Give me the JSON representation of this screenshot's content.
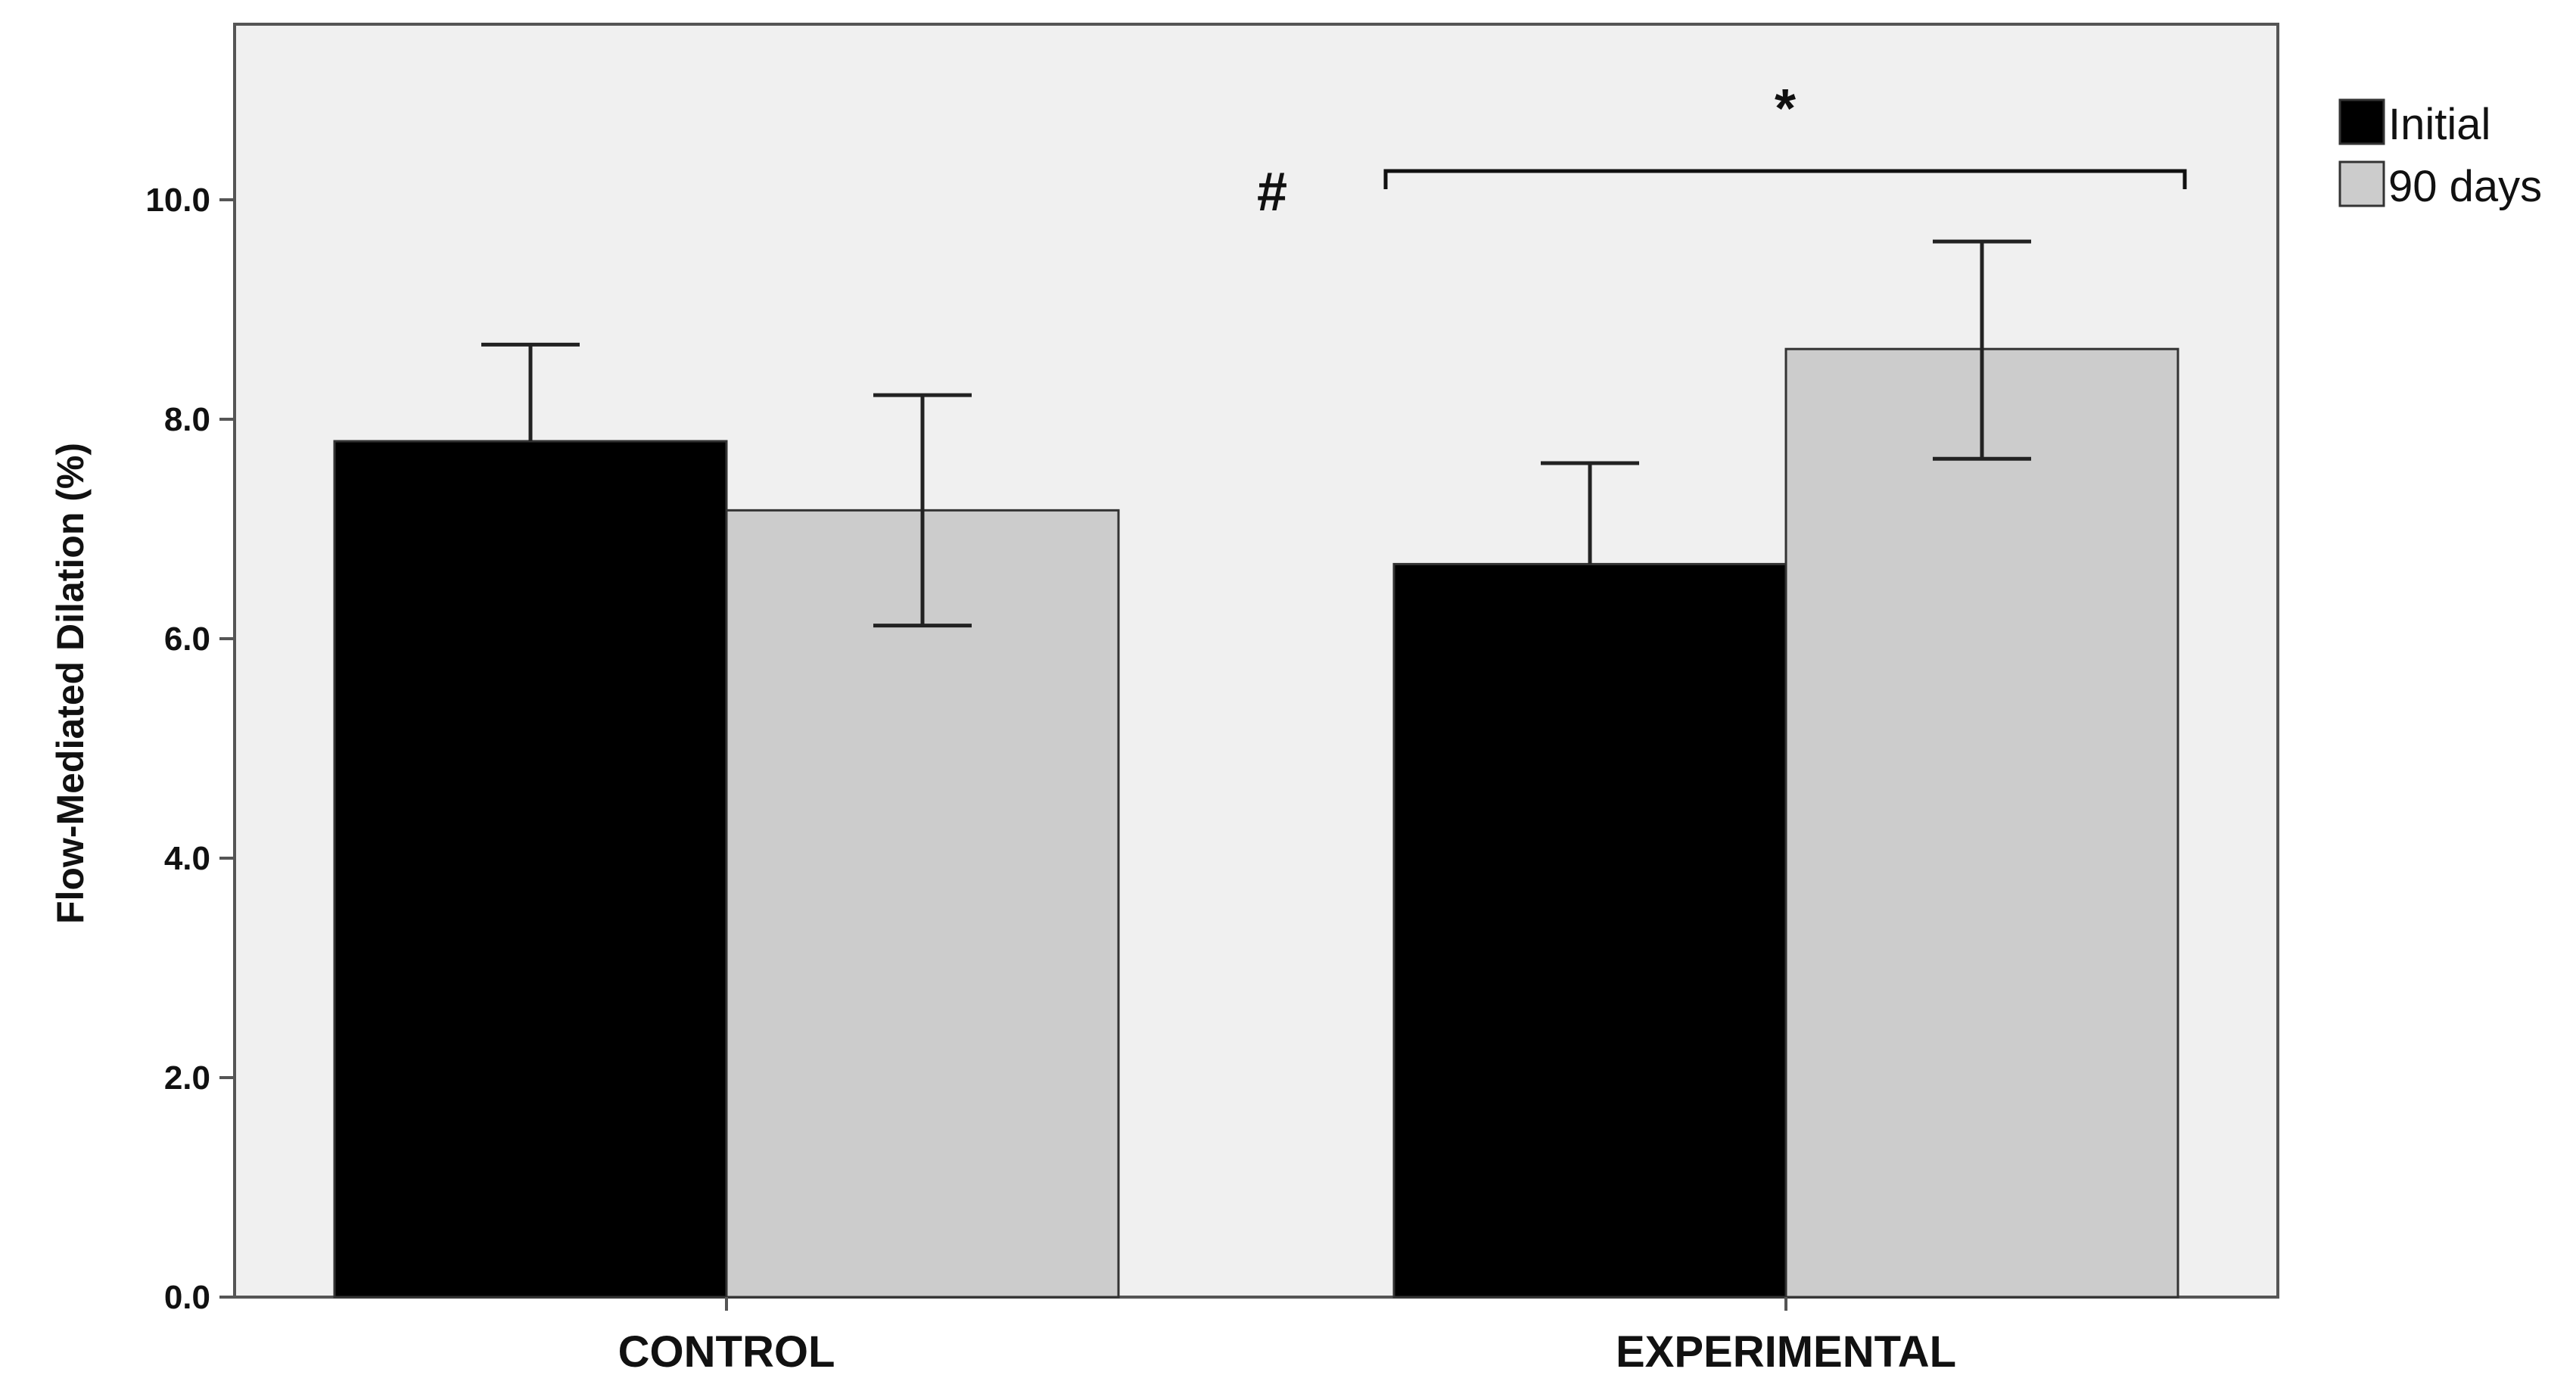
{
  "chart_data": {
    "type": "bar",
    "title": "",
    "xlabel": "",
    "ylabel": "Flow-Mediated Dilation (%)",
    "ylim": [
      0,
      11.6
    ],
    "yticks": [
      0,
      2,
      4,
      6,
      8,
      10
    ],
    "ytick_labels": [
      "0.0",
      "2.0",
      "4.0",
      "6.0",
      "8.0",
      "10.0"
    ],
    "categories": [
      "CONTROL",
      "EXPERIMENTAL"
    ],
    "series": [
      {
        "name": "Initial",
        "color": "#000000",
        "values": [
          7.8,
          6.68
        ],
        "error_high": [
          8.68,
          7.6
        ],
        "error_low": [
          7.8,
          6.68
        ]
      },
      {
        "name": "90 days",
        "color": "#cccccc",
        "values": [
          7.17,
          8.64
        ],
        "error_high": [
          8.22,
          9.62
        ],
        "error_low": [
          6.12,
          7.64
        ]
      }
    ],
    "legend": {
      "position": "right",
      "entries": [
        "Initial",
        "90 days"
      ]
    },
    "annotations": [
      {
        "id": "hash",
        "text": "#",
        "category": "EXPERIMENTAL",
        "note": "left of bracket"
      },
      {
        "id": "star",
        "text": "*",
        "category": "EXPERIMENTAL",
        "note": "above bracket spanning Initial and 90 days"
      }
    ],
    "grid": false,
    "plot_background": "#f0f0f0",
    "axis_color": "#555555"
  }
}
